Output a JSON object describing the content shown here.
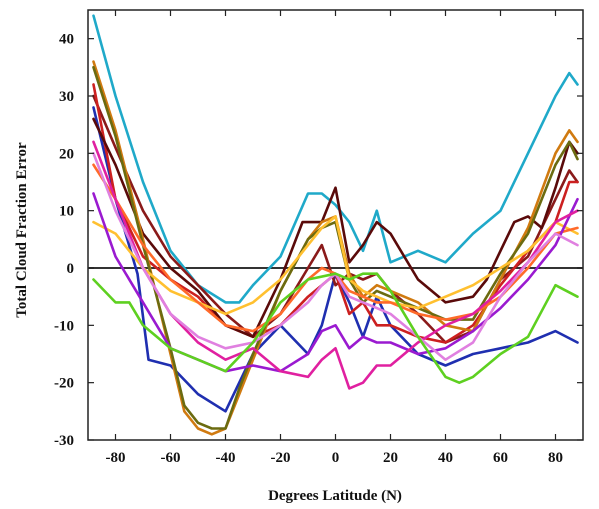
{
  "chart_data": {
    "type": "line",
    "title": "",
    "xlabel": "Degrees Latitude (N)",
    "ylabel": "Total Cloud Fraction Error",
    "xlim": [
      -90,
      90
    ],
    "ylim": [
      -30,
      45
    ],
    "x_ticks": [
      -80,
      -60,
      -40,
      -20,
      0,
      20,
      40,
      60,
      80
    ],
    "y_ticks": [
      -30,
      -20,
      -10,
      0,
      10,
      20,
      30,
      40
    ],
    "x_tick_labels": [
      "-80",
      "-60",
      "-40",
      "-20",
      "0",
      "20",
      "40",
      "60",
      "80"
    ],
    "y_tick_labels": [
      "-30",
      "-20",
      "-10",
      "0",
      "10",
      "20",
      "30",
      "40"
    ],
    "zero_line": true,
    "grid": false,
    "legend": "none",
    "series": [
      {
        "color": "#1fa9c9",
        "x": [
          -88,
          -80,
          -70,
          -60,
          -50,
          -40,
          -35,
          -30,
          -20,
          -10,
          -5,
          0,
          5,
          10,
          15,
          20,
          30,
          40,
          50,
          60,
          70,
          80,
          85,
          88
        ],
        "y": [
          44,
          30,
          15,
          3,
          -3,
          -6,
          -6,
          -3,
          2,
          13,
          13,
          11,
          8,
          3,
          10,
          1,
          3,
          1,
          6,
          10,
          20,
          30,
          34,
          32
        ]
      },
      {
        "color": "#1f2fb0",
        "x": [
          -88,
          -80,
          -72,
          -68,
          -60,
          -50,
          -40,
          -30,
          -20,
          -10,
          -5,
          0,
          5,
          10,
          15,
          20,
          30,
          40,
          50,
          60,
          70,
          80,
          88
        ],
        "y": [
          28,
          12,
          -1,
          -16,
          -17,
          -22,
          -25,
          -15,
          -10,
          -15,
          -10,
          -1,
          -6,
          -12,
          -5,
          -10,
          -15,
          -17,
          -15,
          -14,
          -13,
          -11,
          -13
        ]
      },
      {
        "color": "#8a1a1a",
        "x": [
          -88,
          -80,
          -70,
          -60,
          -50,
          -40,
          -30,
          -20,
          -10,
          -5,
          0,
          5,
          10,
          15,
          20,
          30,
          40,
          50,
          60,
          70,
          80,
          85,
          88
        ],
        "y": [
          30,
          21,
          10,
          2,
          -3,
          -8,
          -12,
          -8,
          0,
          4,
          -3,
          -1,
          -2,
          -1,
          -4,
          -8,
          -13,
          -11,
          -2,
          2,
          12,
          17,
          15
        ]
      },
      {
        "color": "#cc2020",
        "x": [
          -88,
          -80,
          -70,
          -60,
          -50,
          -40,
          -30,
          -20,
          -10,
          -5,
          0,
          5,
          10,
          15,
          20,
          30,
          40,
          50,
          60,
          70,
          80,
          85,
          88
        ],
        "y": [
          32,
          12,
          2,
          -2,
          -5,
          -10,
          -12,
          -10,
          -5,
          -3,
          -1,
          -8,
          -6,
          -10,
          -10,
          -12,
          -13,
          -10,
          -3,
          3,
          8,
          15,
          15
        ]
      },
      {
        "color": "#5a0a0a",
        "x": [
          -88,
          -80,
          -70,
          -60,
          -50,
          -40,
          -30,
          -20,
          -12,
          -5,
          0,
          5,
          10,
          15,
          20,
          30,
          40,
          50,
          55,
          60,
          65,
          70,
          75,
          80,
          85,
          88
        ],
        "y": [
          26,
          18,
          6,
          0,
          -4,
          -10,
          -12,
          -2,
          8,
          8,
          14,
          1,
          4,
          8,
          6,
          -2,
          -6,
          -5,
          -2,
          3,
          8,
          9,
          7,
          14,
          22,
          20
        ]
      },
      {
        "color": "#d07a10",
        "x": [
          -88,
          -80,
          -70,
          -60,
          -55,
          -50,
          -45,
          -40,
          -35,
          -30,
          -20,
          -10,
          -5,
          0,
          5,
          10,
          15,
          20,
          30,
          40,
          50,
          60,
          70,
          80,
          85,
          88
        ],
        "y": [
          36,
          24,
          5,
          -15,
          -25,
          -28,
          -29,
          -28,
          -22,
          -16,
          -4,
          5,
          8,
          9,
          -1,
          -5,
          -3,
          -4,
          -6,
          -10,
          -11,
          -2,
          7,
          20,
          24,
          22
        ]
      },
      {
        "color": "#6b6b10",
        "x": [
          -88,
          -80,
          -70,
          -60,
          -55,
          -50,
          -45,
          -40,
          -35,
          -30,
          -20,
          -10,
          -5,
          0,
          5,
          10,
          15,
          20,
          30,
          40,
          50,
          60,
          70,
          80,
          85,
          88
        ],
        "y": [
          35,
          23,
          4,
          -14,
          -24,
          -27,
          -28,
          -28,
          -21,
          -15,
          -4,
          5,
          7,
          8,
          -2,
          -6,
          -4,
          -5,
          -7,
          -9,
          -9,
          -1,
          6,
          18,
          22,
          19
        ]
      },
      {
        "color": "#ffc030",
        "x": [
          -88,
          -80,
          -70,
          -60,
          -50,
          -40,
          -30,
          -20,
          -10,
          -5,
          0,
          5,
          10,
          15,
          20,
          30,
          40,
          50,
          60,
          70,
          80,
          88
        ],
        "y": [
          8,
          6,
          0,
          -4,
          -6,
          -8,
          -6,
          -2,
          4,
          7,
          9,
          -2,
          -4,
          -5,
          -6,
          -7,
          -5,
          -3,
          0,
          3,
          8,
          6
        ]
      },
      {
        "color": "#ff6a2a",
        "x": [
          -88,
          -80,
          -70,
          -60,
          -50,
          -40,
          -30,
          -20,
          -10,
          -5,
          0,
          5,
          10,
          15,
          20,
          30,
          40,
          50,
          60,
          70,
          80,
          88
        ],
        "y": [
          18,
          12,
          4,
          -2,
          -6,
          -10,
          -11,
          -8,
          -2,
          0,
          -1,
          -4,
          -5,
          -6,
          -6,
          -8,
          -9,
          -8,
          -5,
          0,
          6,
          7
        ]
      },
      {
        "color": "#9a1ad0",
        "x": [
          -88,
          -80,
          -70,
          -60,
          -50,
          -40,
          -30,
          -20,
          -10,
          -5,
          0,
          5,
          10,
          15,
          20,
          30,
          40,
          50,
          60,
          70,
          80,
          88
        ],
        "y": [
          13,
          2,
          -6,
          -14,
          -16,
          -18,
          -17,
          -18,
          -15,
          -11,
          -10,
          -14,
          -12,
          -13,
          -13,
          -15,
          -14,
          -11,
          -7,
          -2,
          4,
          12
        ]
      },
      {
        "color": "#e020a0",
        "x": [
          -88,
          -80,
          -70,
          -60,
          -50,
          -40,
          -30,
          -20,
          -10,
          -5,
          0,
          5,
          10,
          15,
          20,
          30,
          40,
          50,
          60,
          70,
          80,
          88
        ],
        "y": [
          22,
          12,
          0,
          -8,
          -13,
          -16,
          -14,
          -18,
          -19,
          -16,
          -14,
          -21,
          -20,
          -17,
          -17,
          -13,
          -10,
          -8,
          -4,
          1,
          8,
          10
        ]
      },
      {
        "color": "#e080e0",
        "x": [
          -88,
          -80,
          -70,
          -60,
          -50,
          -40,
          -30,
          -20,
          -10,
          -5,
          0,
          5,
          10,
          15,
          20,
          30,
          40,
          50,
          60,
          70,
          80,
          88
        ],
        "y": [
          20,
          10,
          0,
          -8,
          -12,
          -14,
          -13,
          -10,
          -6,
          -3,
          -1,
          -5,
          -6,
          -7,
          -8,
          -12,
          -16,
          -13,
          -5,
          1,
          6,
          4
        ]
      },
      {
        "color": "#5ed020",
        "x": [
          -88,
          -80,
          -75,
          -70,
          -65,
          -60,
          -50,
          -40,
          -30,
          -20,
          -10,
          0,
          5,
          10,
          15,
          20,
          30,
          40,
          45,
          50,
          60,
          70,
          80,
          88
        ],
        "y": [
          -2,
          -6,
          -6,
          -10,
          -12,
          -14,
          -16,
          -18,
          -13,
          -6,
          -2,
          -1,
          -2,
          -1,
          -1,
          -4,
          -12,
          -19,
          -20,
          -19,
          -15,
          -12,
          -3,
          -5
        ]
      }
    ]
  }
}
